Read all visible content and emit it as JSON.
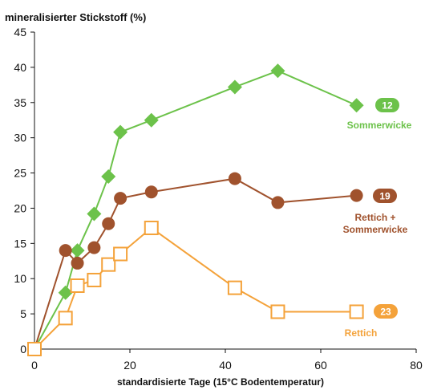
{
  "chart_data": {
    "type": "line",
    "ylabel": "mineralisierter Stickstoff (%)",
    "xlabel": "standardisierte Tage (15°C Bodentemperatur)",
    "xlim": [
      0,
      80
    ],
    "ylim": [
      0,
      45
    ],
    "xticks": [
      0,
      20,
      40,
      60,
      80
    ],
    "yticks": [
      0,
      5,
      10,
      15,
      20,
      25,
      30,
      35,
      40,
      45
    ],
    "grid": false,
    "series": [
      {
        "name": "Sommerwicke",
        "badge": "12",
        "color": "#6cc24a",
        "marker": "diamond",
        "points": [
          [
            0,
            0
          ],
          [
            6.5,
            8
          ],
          [
            9,
            14
          ],
          [
            12.5,
            19.2
          ],
          [
            15.5,
            24.5
          ],
          [
            18,
            30.8
          ],
          [
            24.5,
            32.5
          ],
          [
            42,
            37.2
          ],
          [
            51,
            39.5
          ],
          [
            67.5,
            34.6
          ]
        ]
      },
      {
        "name": "Rettich + Sommerwicke",
        "label_lines": [
          "Rettich +",
          "Sommerwicke"
        ],
        "badge": "19",
        "color": "#a0522d",
        "marker": "circle",
        "points": [
          [
            0,
            0
          ],
          [
            6.5,
            14
          ],
          [
            9,
            12.2
          ],
          [
            12.5,
            14.4
          ],
          [
            15.5,
            17.8
          ],
          [
            18,
            21.4
          ],
          [
            24.5,
            22.3
          ],
          [
            42,
            24.2
          ],
          [
            51,
            20.8
          ],
          [
            67.5,
            21.8
          ]
        ]
      },
      {
        "name": "Rettich",
        "badge": "23",
        "color": "#f4a23a",
        "marker": "square",
        "points": [
          [
            0,
            0
          ],
          [
            6.5,
            4.4
          ],
          [
            9,
            9
          ],
          [
            12.5,
            9.8
          ],
          [
            15.5,
            12
          ],
          [
            18,
            13.5
          ],
          [
            24.5,
            17.2
          ],
          [
            42,
            8.7
          ],
          [
            51,
            5.3
          ],
          [
            67.5,
            5.3
          ]
        ]
      }
    ]
  }
}
